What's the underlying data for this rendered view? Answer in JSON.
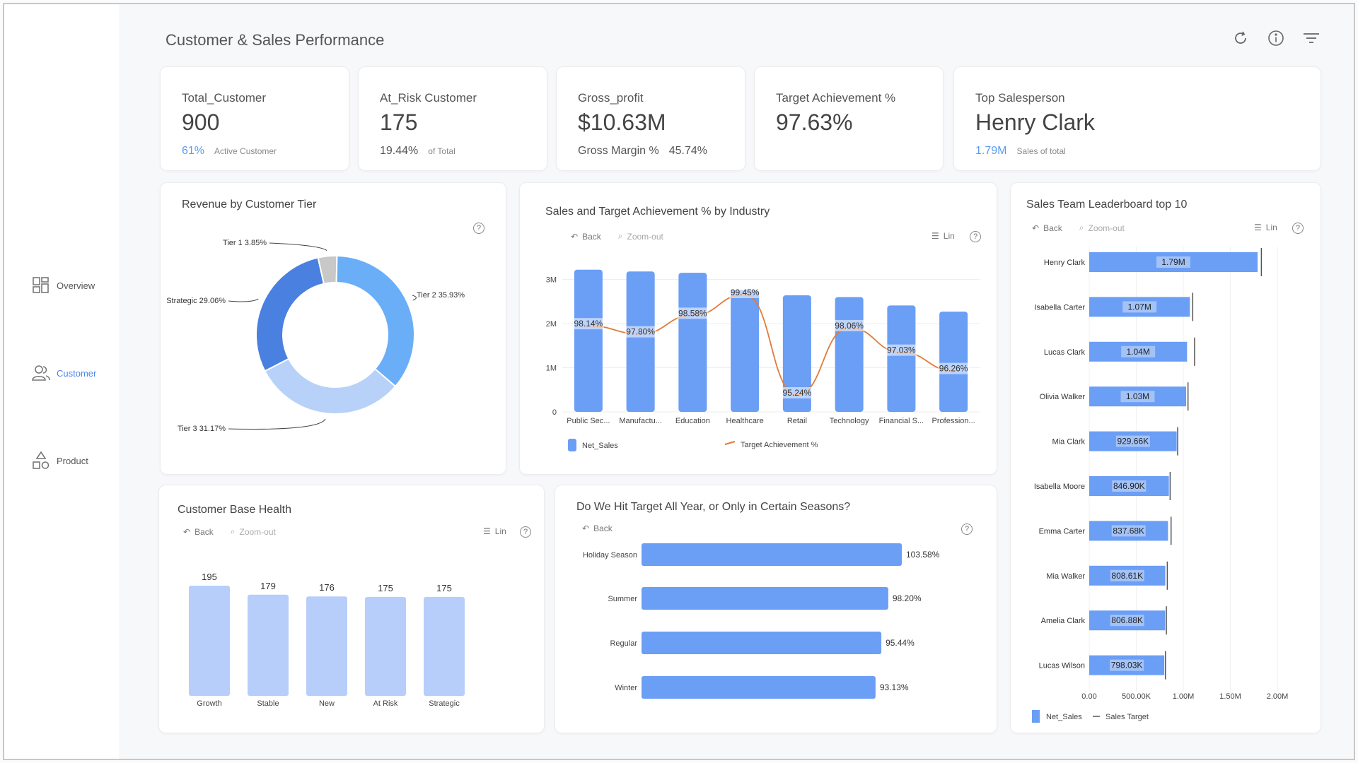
{
  "page_title": "Customer & Sales Performance",
  "top_icons": [
    "refresh-icon",
    "info-icon",
    "filter-icon"
  ],
  "sidebar": {
    "items": [
      {
        "label": "Overview",
        "icon": "dashboard-icon",
        "active": false
      },
      {
        "label": "Customer",
        "icon": "users-icon",
        "active": true
      },
      {
        "label": "Product",
        "icon": "shapes-icon",
        "active": false
      }
    ]
  },
  "kpis": {
    "total_customer": {
      "label": "Total_Customer",
      "value": "900",
      "sub_value": "61%",
      "sub_label": "Active Customer"
    },
    "at_risk": {
      "label": "At_Risk Customer",
      "value": "175",
      "sub_value": "19.44%",
      "sub_label": "of Total"
    },
    "gross_profit": {
      "label": "Gross_profit",
      "value": "$10.63M",
      "sub_label": "Gross Margin %",
      "sub_value": "45.74%"
    },
    "target_achievement": {
      "label": "Target Achievement %",
      "value": "97.63%"
    },
    "top_salesperson": {
      "label": "Top Salesperson",
      "value": "Henry Clark",
      "sub_value": "1.79M",
      "sub_label": "Sales of total"
    }
  },
  "toolbar": {
    "back": "Back",
    "zoom_out": "Zoom-out",
    "lin": "Lin",
    "help": "?"
  },
  "chart_data": [
    {
      "id": "revenue_by_tier",
      "type": "pie",
      "title": "Revenue by Customer Tier",
      "categories": [
        "Tier 1",
        "Tier 2",
        "Tier 3",
        "Strategic"
      ],
      "values": [
        3.85,
        35.93,
        31.17,
        29.06
      ],
      "labels": [
        "Tier 1 3.85%",
        "Tier 2 35.93%",
        "Tier 3 31.17%",
        "Strategic 29.06%"
      ],
      "colors": [
        "#c8c8c8",
        "#6aaef8",
        "#b8d1f8",
        "#4a80e0"
      ]
    },
    {
      "id": "sales_by_industry",
      "type": "bar",
      "title": "Sales and Target Achievement % by Industry",
      "categories": [
        "Public Sec...",
        "Manufactu...",
        "Education",
        "Healthcare",
        "Retail",
        "Technology",
        "Financial S...",
        "Profession..."
      ],
      "series": [
        {
          "name": "Net_Sales",
          "values": [
            3.22,
            3.18,
            3.15,
            2.76,
            2.64,
            2.6,
            2.41,
            2.27
          ],
          "color": "#6b9ef5"
        },
        {
          "name": "Target Achievement %",
          "values": [
            98.14,
            97.8,
            98.58,
            99.45,
            95.24,
            98.06,
            97.03,
            96.26
          ],
          "labels": [
            "98.14%",
            "97.80%",
            "98.58%",
            "99.45%",
            "95.24%",
            "98.06%",
            "97.03%",
            "96.26%"
          ],
          "color": "#e07b39"
        }
      ],
      "y_ticks": [
        "0",
        "1M",
        "2M",
        "3M"
      ],
      "ylim": [
        0,
        3.2
      ],
      "legend": "bottom-left"
    },
    {
      "id": "customer_base_health",
      "type": "bar",
      "title": "Customer Base Health",
      "categories": [
        "Growth",
        "Stable",
        "New",
        "At Risk",
        "Strategic"
      ],
      "values": [
        195,
        179,
        176,
        175,
        175
      ],
      "color": "#b7cefa"
    },
    {
      "id": "target_by_season",
      "type": "bar",
      "orientation": "horizontal",
      "title": "Do We Hit Target All Year, or Only in Certain Seasons?",
      "categories": [
        "Holiday Season",
        "Summer",
        "Regular",
        "Winter"
      ],
      "values": [
        103.58,
        98.2,
        95.44,
        93.13
      ],
      "labels": [
        "103.58%",
        "98.20%",
        "95.44%",
        "93.13%"
      ],
      "color": "#6b9ef5"
    },
    {
      "id": "leaderboard",
      "type": "bar",
      "orientation": "horizontal",
      "title": "Sales Team Leaderboard top 10",
      "categories": [
        "Henry Clark",
        "Isabella Carter",
        "Lucas Clark",
        "Olivia Walker",
        "Mia Clark",
        "Isabella Moore",
        "Emma Carter",
        "Mia Walker",
        "Amelia Clark",
        "Lucas Wilson"
      ],
      "series": [
        {
          "name": "Net_Sales",
          "values": [
            1.79,
            1.07,
            1.04,
            1.03,
            0.92966,
            0.8469,
            0.83768,
            0.80861,
            0.80688,
            0.79803
          ],
          "labels": [
            "1.79M",
            "1.07M",
            "1.04M",
            "1.03M",
            "929.66K",
            "846.90K",
            "837.68K",
            "808.61K",
            "806.88K",
            "798.03K"
          ],
          "color": "#6b9ef5"
        },
        {
          "name": "Sales Target",
          "values": [
            1.83,
            1.1,
            1.12,
            1.05,
            0.94,
            0.86,
            0.87,
            0.83,
            0.82,
            0.81
          ]
        }
      ],
      "x_ticks": [
        "0.00",
        "500.00K",
        "1.00M",
        "1.50M",
        "2.00M"
      ],
      "xlim": [
        0,
        2.0
      ],
      "legend": "bottom-left"
    }
  ]
}
